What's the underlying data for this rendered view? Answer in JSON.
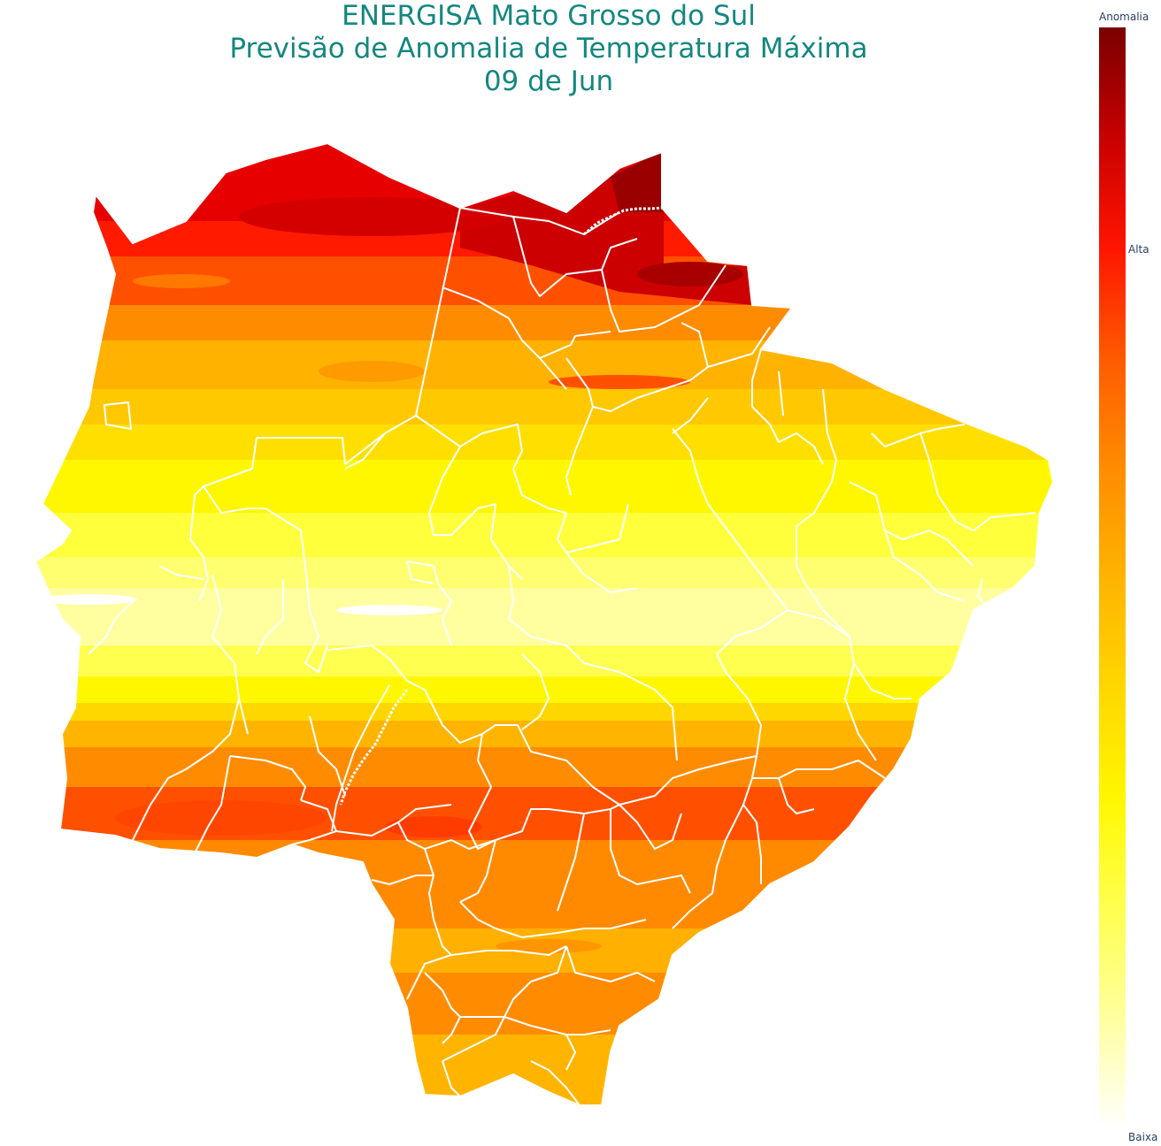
{
  "title": {
    "line1": "ENERGISA Mato Grosso do Sul",
    "line2": "Previsão de Anomalia de Temperatura Máxima",
    "line3": "09 de Jun"
  },
  "colorbar": {
    "title": "Anomalia",
    "high_label": "Alta",
    "low_label": "Baixa",
    "colors": [
      "#7a0000",
      "#c80000",
      "#ff1500",
      "#ff5a00",
      "#ff8c00",
      "#ffb400",
      "#ffd700",
      "#fff700",
      "#ffff50",
      "#ffffa0",
      "#ffffff"
    ]
  },
  "map": {
    "region": "Mato Grosso do Sul",
    "anomaly_bands_north_to_south": [
      "very-high",
      "high",
      "moderate-high",
      "moderate",
      "low",
      "moderate",
      "moderate-high",
      "high",
      "moderate"
    ],
    "boundary_color": "#ffffff"
  }
}
